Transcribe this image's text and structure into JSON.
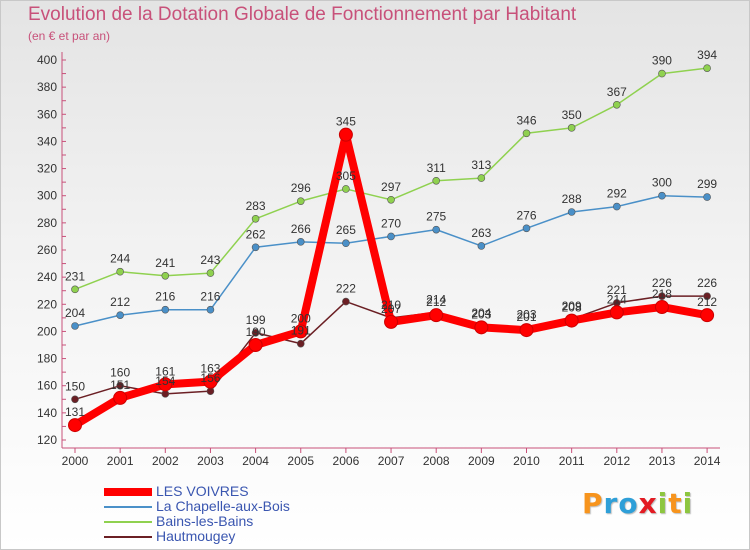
{
  "title": "Evolution de la Dotation Globale de Fonctionnement par Habitant",
  "subtitle": "(en € et par an)",
  "logo": {
    "text": "Proxiti",
    "letters": [
      {
        "ch": "P",
        "color": "#f7941d"
      },
      {
        "ch": "r",
        "color": "#2e9fd8"
      },
      {
        "ch": "o",
        "color": "#2e9fd8"
      },
      {
        "ch": "x",
        "color": "#e31b23"
      },
      {
        "ch": "i",
        "color": "#8dc63f"
      },
      {
        "ch": "t",
        "color": "#f7941d"
      },
      {
        "ch": "i",
        "color": "#8dc63f"
      }
    ]
  },
  "chart_data": {
    "type": "line",
    "title": "Evolution de la Dotation Globale de Fonctionnement par Habitant",
    "subtitle": "(en € et par an)",
    "xlabel": "",
    "ylabel": "",
    "x": [
      "2000",
      "2001",
      "2002",
      "2003",
      "2004",
      "2005",
      "2006",
      "2007",
      "2008",
      "2009",
      "2010",
      "2011",
      "2012",
      "2013",
      "2014"
    ],
    "yticks": [
      120,
      140,
      160,
      180,
      200,
      220,
      240,
      260,
      280,
      300,
      320,
      340,
      360,
      380,
      400
    ],
    "ylim": [
      120,
      400
    ],
    "grid": false,
    "legend_position": "bottom-left",
    "series": [
      {
        "name": "LES VOIVRES",
        "color": "#ff0000",
        "emphasis": true,
        "values": [
          131,
          151,
          161,
          163,
          190,
          200,
          345,
          207,
          212,
          203,
          201,
          208,
          214,
          218,
          212
        ],
        "labels": [
          "131",
          "151",
          "161",
          "163",
          "190",
          "200",
          "345",
          "207",
          "212",
          "203",
          "201",
          "208",
          "214",
          "218",
          "212"
        ]
      },
      {
        "name": "La Chapelle-aux-Bois",
        "color": "#4a90c8",
        "values": [
          204,
          212,
          216,
          216,
          262,
          266,
          265,
          270,
          275,
          263,
          276,
          288,
          292,
          300,
          299
        ],
        "labels": [
          "204",
          "212",
          "216",
          "216",
          "262",
          "266",
          "265",
          "270",
          "275",
          "263",
          "276",
          "288",
          "292",
          "300",
          "299"
        ]
      },
      {
        "name": "Bains-les-Bains",
        "color": "#8fd14f",
        "values": [
          231,
          244,
          241,
          243,
          283,
          296,
          305,
          297,
          311,
          313,
          346,
          350,
          367,
          390,
          394
        ],
        "labels": [
          "231",
          "244",
          "241",
          "243",
          "283",
          "296",
          "305",
          "297",
          "311",
          "313",
          "346",
          "350",
          "367",
          "390",
          "394"
        ]
      },
      {
        "name": "Hautmougey",
        "color": "#6b1f24",
        "values": [
          150,
          160,
          154,
          156,
          199,
          191,
          222,
          210,
          214,
          204,
          203,
          209,
          221,
          226,
          226
        ],
        "labels": [
          "150",
          "160",
          "154",
          "156",
          "199",
          "191",
          "222",
          "210",
          "214",
          "204",
          "203",
          "209",
          "221",
          "226",
          "226"
        ]
      }
    ]
  }
}
